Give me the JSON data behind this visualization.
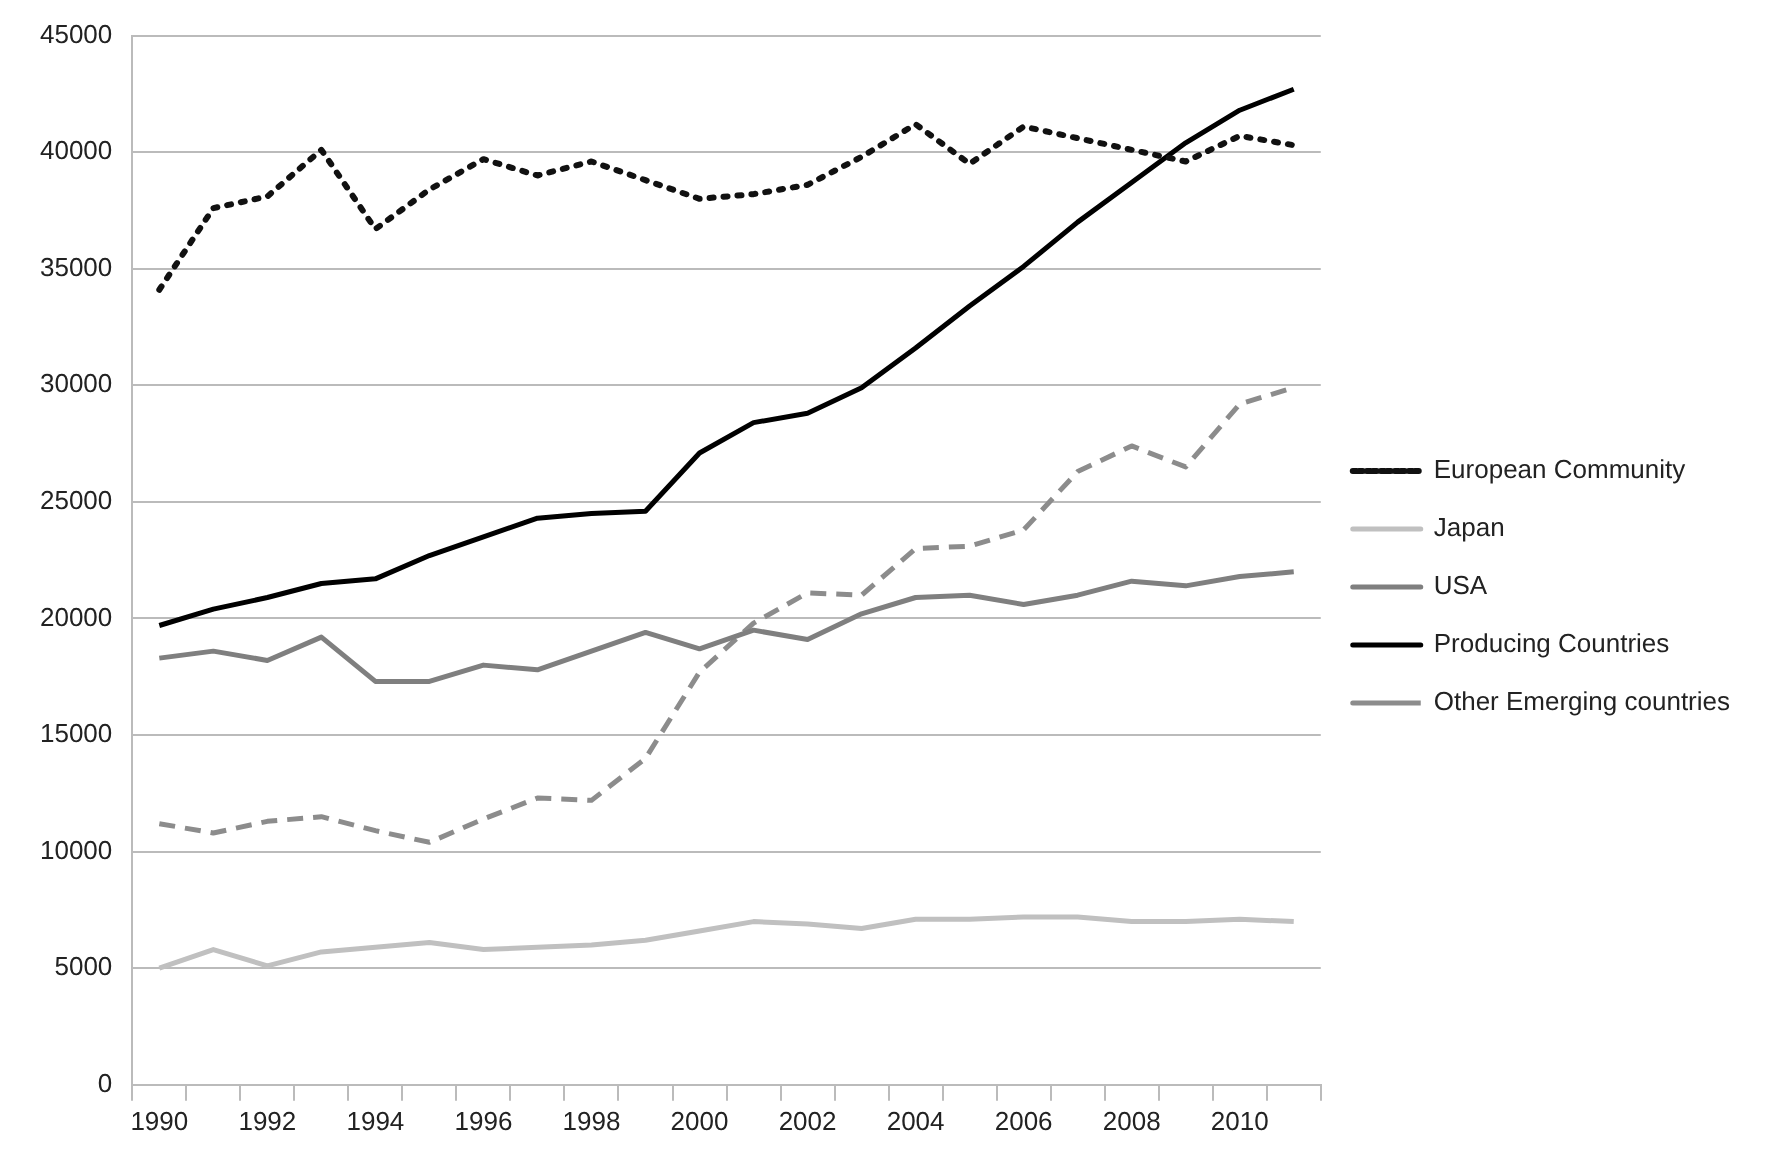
{
  "chart_data": {
    "type": "line",
    "categories": [
      "1990",
      null,
      "1992",
      null,
      "1994",
      null,
      "1996",
      null,
      "1998",
      null,
      "2000",
      null,
      "2002",
      null,
      "2004",
      null,
      "2006",
      null,
      "2008",
      null,
      "2010",
      null
    ],
    "ylim": [
      0,
      45000
    ],
    "yticks": [
      0,
      5000,
      10000,
      15000,
      20000,
      25000,
      30000,
      35000,
      40000,
      45000
    ],
    "grid": "y",
    "legend": "right",
    "marker": "none",
    "series": [
      {
        "name": "European Community",
        "color": "#111111",
        "line_style": "dotted",
        "values": [
          34100,
          37600,
          38100,
          40100,
          36700,
          38400,
          39700,
          39000,
          39600,
          38800,
          38000,
          38200,
          38600,
          39800,
          41200,
          39500,
          41100,
          40600,
          40100,
          39600,
          40700,
          40300
        ]
      },
      {
        "name": "Japan",
        "color": "#c0c0c0",
        "line_style": "solid",
        "values": [
          5000,
          5800,
          5100,
          5700,
          5900,
          6100,
          5800,
          5900,
          6000,
          6200,
          6600,
          7000,
          6900,
          6700,
          7100,
          7100,
          7200,
          7200,
          7000,
          7000,
          7100,
          7000
        ]
      },
      {
        "name": "USA",
        "color": "#7f7f7f",
        "line_style": "solid",
        "values": [
          18300,
          18600,
          18200,
          19200,
          17300,
          17300,
          18000,
          17800,
          18600,
          19400,
          18700,
          19500,
          19100,
          20200,
          20900,
          21000,
          20600,
          21000,
          21600,
          21400,
          21800,
          22000
        ]
      },
      {
        "name": "Producing Countries",
        "color": "#000000",
        "line_style": "solid",
        "values": [
          19700,
          20400,
          20900,
          21500,
          21700,
          22700,
          23500,
          24300,
          24500,
          24600,
          27100,
          28400,
          28800,
          29900,
          31600,
          33400,
          35100,
          37000,
          38700,
          40400,
          41800,
          42700
        ]
      },
      {
        "name": "Other Emerging countries",
        "color": "#8c8c8c",
        "line_style": "dashed",
        "values": [
          11200,
          10800,
          11300,
          11500,
          10900,
          10400,
          11400,
          12300,
          12200,
          14000,
          17700,
          19800,
          21100,
          21000,
          23000,
          23100,
          23800,
          26300,
          27400,
          26500,
          29200,
          29900
        ]
      }
    ]
  }
}
